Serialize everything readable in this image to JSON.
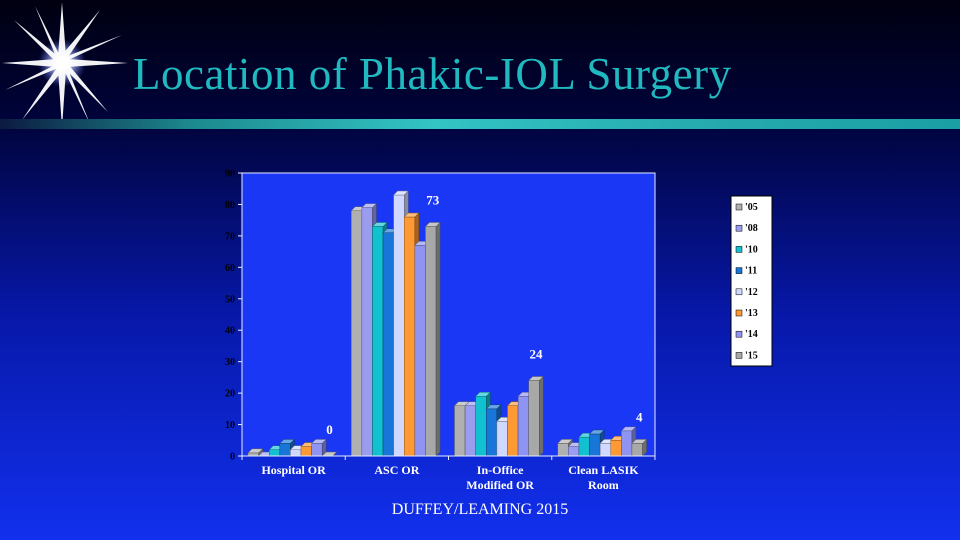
{
  "title": "Location of Phakic-IOL Surgery",
  "footer": "DUFFEY/LEAMING 2015",
  "colors": {
    "title": "#21b9c0",
    "background_top": "#000010",
    "background_bottom": "#1230ee",
    "plot_background": "#1a37f5"
  },
  "icons": {
    "corner": "starburst-icon"
  },
  "chart_data": {
    "type": "bar",
    "categories": [
      "Hospital OR",
      "ASC OR",
      "In-Office Modified OR",
      "Clean LASIK Room"
    ],
    "category_lines": [
      [
        "Hospital OR"
      ],
      [
        "ASC OR"
      ],
      [
        "In-Office",
        "Modified OR"
      ],
      [
        "Clean LASIK",
        "Room"
      ]
    ],
    "series": [
      {
        "name": "'05",
        "color": "#b0b0b0",
        "values": [
          1,
          78,
          16,
          4
        ]
      },
      {
        "name": "'08",
        "color": "#9a9cf0",
        "values": [
          0,
          79,
          16,
          3
        ]
      },
      {
        "name": "'10",
        "color": "#12c1d0",
        "values": [
          2,
          73,
          19,
          6
        ]
      },
      {
        "name": "'11",
        "color": "#1876d8",
        "values": [
          4,
          71,
          15,
          7
        ]
      },
      {
        "name": "'12",
        "color": "#d0d8ff",
        "values": [
          2,
          83,
          11,
          4
        ]
      },
      {
        "name": "'13",
        "color": "#ff9933",
        "values": [
          3,
          76,
          16,
          5
        ]
      },
      {
        "name": "'14",
        "color": "#8f94f2",
        "values": [
          4,
          67,
          19,
          8
        ]
      },
      {
        "name": "'15",
        "color": "#a8a8a8",
        "values": [
          0,
          73,
          24,
          4
        ]
      }
    ],
    "data_labels": [
      "0",
      "73",
      "24",
      "4"
    ],
    "ylim": [
      0,
      90
    ],
    "yticks": [
      0,
      10,
      20,
      30,
      40,
      50,
      60,
      70,
      80,
      90
    ],
    "grid": false,
    "legend": "right"
  }
}
